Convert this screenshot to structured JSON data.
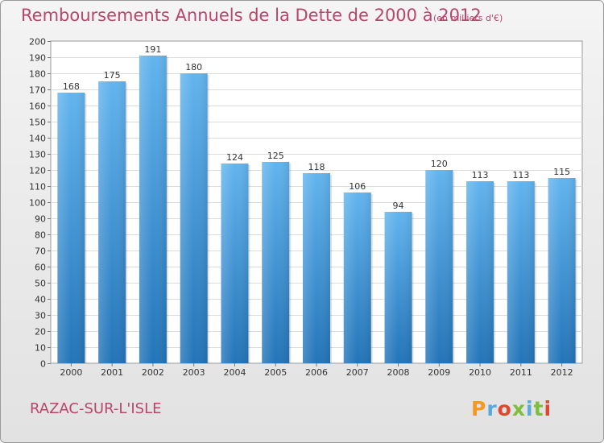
{
  "chart_data": {
    "type": "bar",
    "title": "Remboursements Annuels de la Dette de 2000 à 2012",
    "subtitle": "(en milliers d'€)",
    "categories": [
      "2000",
      "2001",
      "2002",
      "2003",
      "2004",
      "2005",
      "2006",
      "2007",
      "2008",
      "2009",
      "2010",
      "2011",
      "2012"
    ],
    "values": [
      168,
      175,
      191,
      180,
      124,
      125,
      118,
      106,
      94,
      120,
      113,
      113,
      115
    ],
    "ylim": [
      0,
      200
    ],
    "ytick_step": 10,
    "grid": true,
    "bar_color": "#3f97dc",
    "xlabel": "",
    "ylabel": ""
  },
  "footer": {
    "commune": "RAZAC-SUR-L'ISLE",
    "logo_text": "Proxiti"
  },
  "colors": {
    "title": "#b8466a",
    "logo": [
      "#f39a1e",
      "#5aa9dd",
      "#e2462f",
      "#7bbf3a",
      "#5aa9dd",
      "#7bbf3a",
      "#e2462f"
    ]
  }
}
